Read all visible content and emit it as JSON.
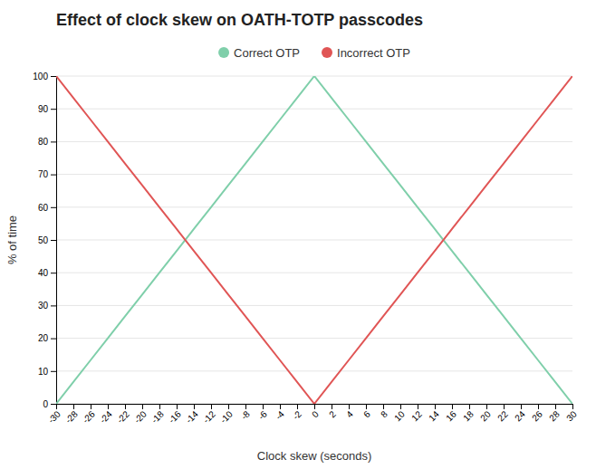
{
  "chart_data": {
    "type": "line",
    "title": "Effect of clock skew on OATH-TOTP passcodes",
    "xlabel": "Clock skew (seconds)",
    "ylabel": "% of time",
    "x": [
      -30,
      -28,
      -26,
      -24,
      -22,
      -20,
      -18,
      -16,
      -14,
      -12,
      -10,
      -8,
      -6,
      -4,
      -2,
      0,
      2,
      4,
      6,
      8,
      10,
      12,
      14,
      16,
      18,
      20,
      22,
      24,
      26,
      28,
      30
    ],
    "series": [
      {
        "name": "Correct OTP",
        "color": "#7fcfaa",
        "values": [
          0,
          6.67,
          13.33,
          20,
          26.67,
          33.33,
          40,
          46.67,
          53.33,
          60,
          66.67,
          73.33,
          80,
          86.67,
          93.33,
          100,
          93.33,
          86.67,
          80,
          73.33,
          66.67,
          60,
          53.33,
          46.67,
          40,
          33.33,
          26.67,
          20,
          13.33,
          6.67,
          0
        ]
      },
      {
        "name": "Incorrect OTP",
        "color": "#e05555",
        "values": [
          100,
          93.33,
          86.67,
          80,
          73.33,
          66.67,
          60,
          53.33,
          46.67,
          40,
          33.33,
          26.67,
          20,
          13.33,
          6.67,
          0,
          6.67,
          13.33,
          20,
          26.67,
          33.33,
          40,
          46.67,
          53.33,
          60,
          66.67,
          73.33,
          80,
          86.67,
          93.33,
          100
        ]
      }
    ],
    "xlim": [
      -30,
      30
    ],
    "xticks": [
      -30,
      -28,
      -26,
      -24,
      -22,
      -20,
      -18,
      -16,
      -14,
      -12,
      -10,
      -8,
      -6,
      -4,
      -2,
      0,
      2,
      4,
      6,
      8,
      10,
      12,
      14,
      16,
      18,
      20,
      22,
      24,
      26,
      28,
      30
    ],
    "ylim": [
      0,
      100
    ],
    "yticks": [
      0,
      10,
      20,
      30,
      40,
      50,
      60,
      70,
      80,
      90,
      100
    ],
    "grid": "y",
    "legend": "top"
  }
}
